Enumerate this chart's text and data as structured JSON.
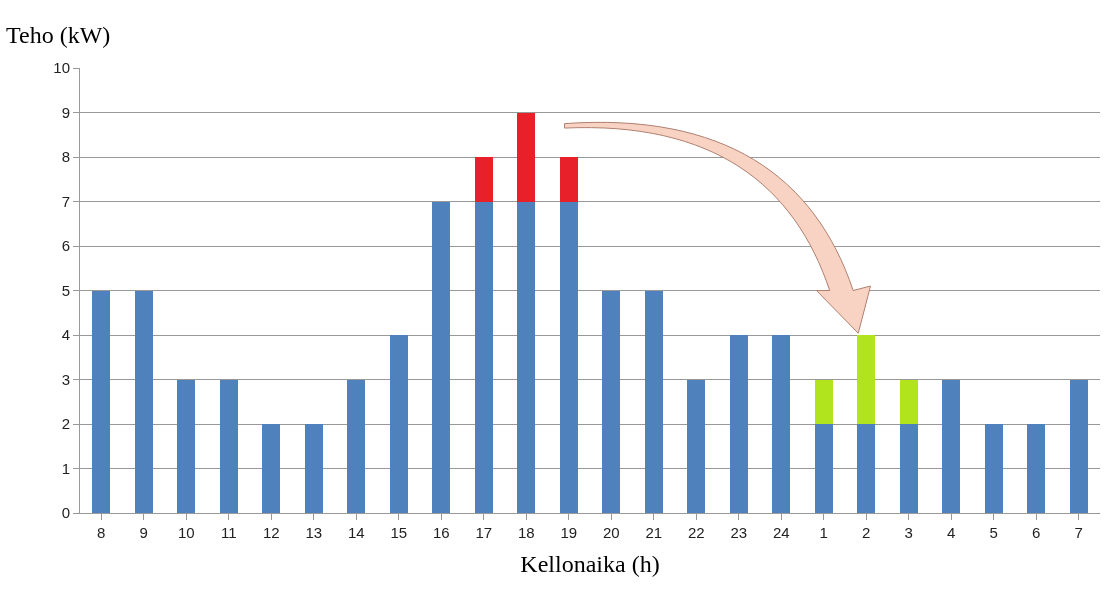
{
  "chart_data": {
    "type": "bar",
    "stacked": true,
    "xlabel": "Kellonaika (h)",
    "ylabel": "Teho (kW)",
    "categories": [
      "8",
      "9",
      "10",
      "11",
      "12",
      "13",
      "14",
      "15",
      "16",
      "17",
      "18",
      "19",
      "20",
      "21",
      "22",
      "23",
      "24",
      "1",
      "2",
      "3",
      "4",
      "5",
      "6",
      "7"
    ],
    "series": [
      {
        "color": "#4f81bd",
        "values": [
          5,
          5,
          3,
          3,
          2,
          2,
          3,
          4,
          7,
          7,
          7,
          7,
          5,
          5,
          3,
          4,
          4,
          2,
          2,
          2,
          3,
          2,
          2,
          3
        ]
      },
      {
        "color": "#e8202a",
        "values": [
          null,
          null,
          null,
          null,
          null,
          null,
          null,
          null,
          null,
          1,
          2,
          1,
          null,
          null,
          null,
          null,
          null,
          null,
          null,
          null,
          null,
          null,
          null,
          null
        ]
      },
      {
        "color": "#b2e41e",
        "values": [
          null,
          null,
          null,
          null,
          null,
          null,
          null,
          null,
          null,
          null,
          null,
          null,
          null,
          null,
          null,
          null,
          null,
          1,
          2,
          1,
          null,
          null,
          null,
          null
        ]
      }
    ],
    "ylim": [
      0,
      10
    ],
    "yticks": [
      0,
      1,
      2,
      3,
      4,
      5,
      6,
      7,
      8,
      9,
      10
    ],
    "grid": "y"
  }
}
